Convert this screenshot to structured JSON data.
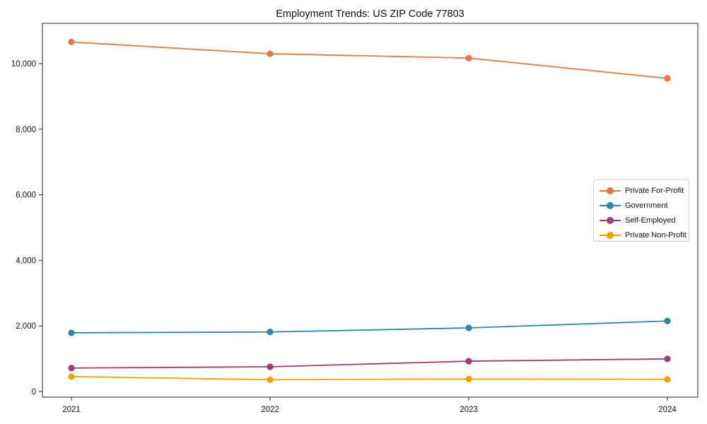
{
  "title": "Employment Trends: US ZIP Code 77803",
  "chart_data": {
    "type": "line",
    "title": "Employment Trends: US ZIP Code 77803",
    "xlabel": "",
    "ylabel": "",
    "categories": [
      "2021",
      "2022",
      "2023",
      "2024"
    ],
    "x": [
      2021,
      2022,
      2023,
      2024
    ],
    "series": [
      {
        "name": "Private For-Profit",
        "color": "#E8763E",
        "values": [
          10660,
          10300,
          10170,
          9550
        ]
      },
      {
        "name": "Government",
        "color": "#2E86A8",
        "values": [
          1790,
          1815,
          1940,
          2150
        ]
      },
      {
        "name": "Self-Employed",
        "color": "#A23B72",
        "values": [
          715,
          755,
          925,
          995
        ]
      },
      {
        "name": "Private Non-Profit",
        "color": "#F5A000",
        "values": [
          455,
          360,
          380,
          370
        ]
      }
    ],
    "y_ticks": {
      "values": [
        0,
        2000,
        4000,
        6000,
        8000,
        10000
      ],
      "labels": [
        "0",
        "2,000",
        "4,000",
        "6,000",
        "8,000",
        "10,000"
      ]
    },
    "ylim": [
      0,
      11200
    ],
    "grid": false,
    "marker": "circle",
    "legend_position": "center-right"
  }
}
